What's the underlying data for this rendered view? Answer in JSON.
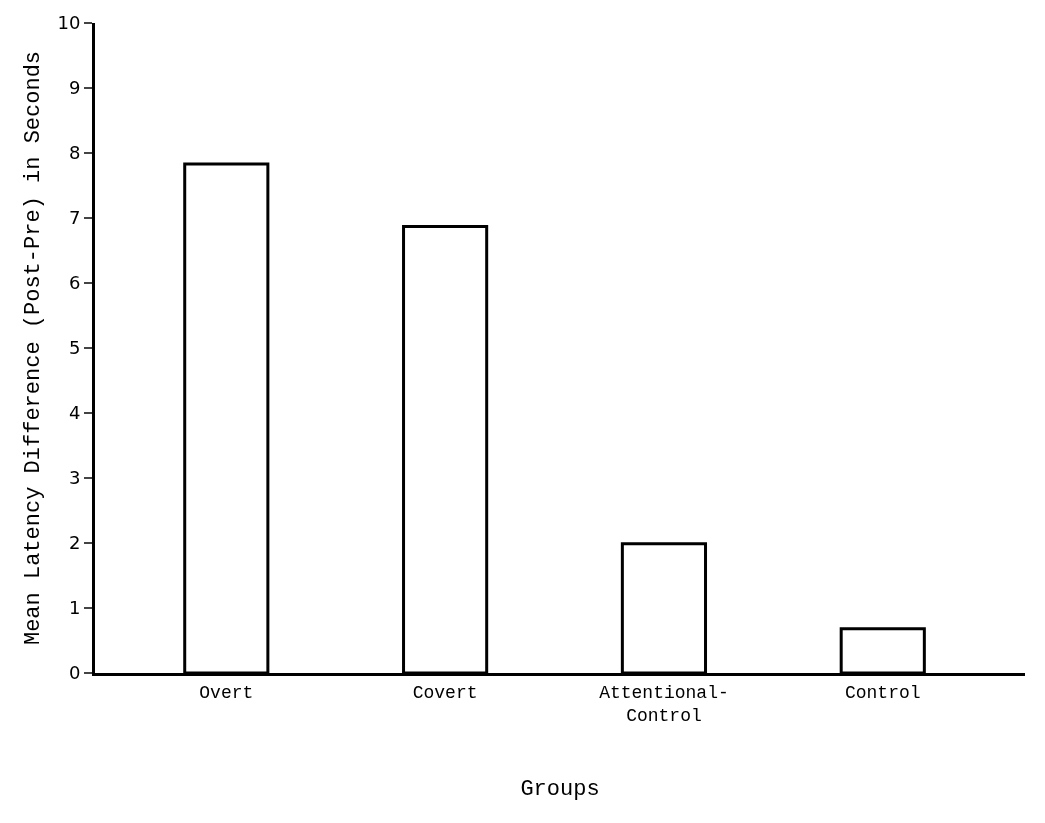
{
  "chart_data": {
    "type": "bar",
    "xlabel": "Groups",
    "ylabel": "Mean Latency Difference (Post-Pre) in Seconds",
    "categories": [
      "Overt",
      "Covert",
      "Attentional-Control",
      "Control"
    ],
    "values": [
      7.83,
      6.87,
      1.99,
      0.68
    ],
    "color": "#ffffff",
    "ylim": [
      0,
      10
    ],
    "yticks": [
      0,
      1,
      2,
      3,
      4,
      5,
      6,
      7,
      8,
      9,
      10
    ]
  }
}
